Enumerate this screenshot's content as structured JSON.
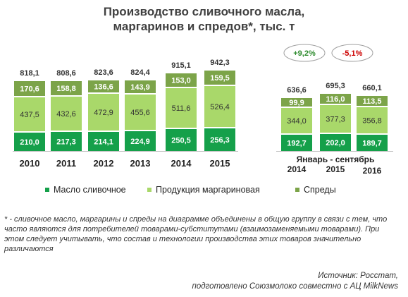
{
  "title_line1": "Производство сливочного масла,",
  "title_line2": "маргаринов и спредов*, тыс. т",
  "colors": {
    "butter": "#15a04a",
    "margarine": "#a9d86a",
    "spreads": "#7ca449",
    "oval": "#a0a0a0",
    "growth_pos": "#2e8b2e",
    "growth_neg": "#cc0000"
  },
  "chart_data": {
    "type": "bar",
    "stacked": true,
    "categories": [
      "2010",
      "2011",
      "2012",
      "2013",
      "2014",
      "2015",
      "2014",
      "2015",
      "2016"
    ],
    "group_label": "Январь - сентябрь",
    "series": [
      {
        "name": "Масло сливочное",
        "values": [
          210.0,
          217.3,
          214.1,
          224.9,
          250.5,
          256.3,
          192.7,
          202.0,
          189.7
        ],
        "labels": [
          "210,0",
          "217,3",
          "214,1",
          "224,9",
          "250,5",
          "256,3",
          "192,7",
          "202,0",
          "189,7"
        ]
      },
      {
        "name": "Продукция маргариновая",
        "values": [
          437.5,
          432.6,
          472.9,
          455.6,
          511.6,
          526.4,
          344.0,
          377.3,
          356.8
        ],
        "labels": [
          "437,5",
          "432,6",
          "472,9",
          "455,6",
          "511,6",
          "526,4",
          "344,0",
          "377,3",
          "356,8"
        ]
      },
      {
        "name": "Спреды",
        "values": [
          170.6,
          158.8,
          136.6,
          143.9,
          153.0,
          159.5,
          99.9,
          116.0,
          113.5
        ],
        "labels": [
          "170,6",
          "158,8",
          "136,6",
          "143,9",
          "153,0",
          "159,5",
          "99,9",
          "116,0",
          "113,5"
        ]
      }
    ],
    "totals": [
      818.1,
      808.6,
      823.6,
      824.4,
      915.1,
      942.3,
      636.6,
      695.3,
      660.1
    ],
    "total_labels": [
      "818,1",
      "808,6",
      "823,6",
      "824,4",
      "915,1",
      "942,3",
      "636,6",
      "695,3",
      "660,1"
    ],
    "growth": [
      "+9,2%",
      "-5,1%"
    ],
    "legend": "bottom"
  },
  "footnote": "* - сливочное масло, маргарины и спреды на диаграмме объединены в общую группу в связи с тем, что часто являются для потребителей товарами-субститутами (взаимозаменяемыми товарами). При этом следует учитывать, что состав и технологии производства этих товаров значительно различаются",
  "source_line1": "Источник: Росстат,",
  "source_line2": "подготовлено Союзмолоко совместно с АЦ MilkNews"
}
